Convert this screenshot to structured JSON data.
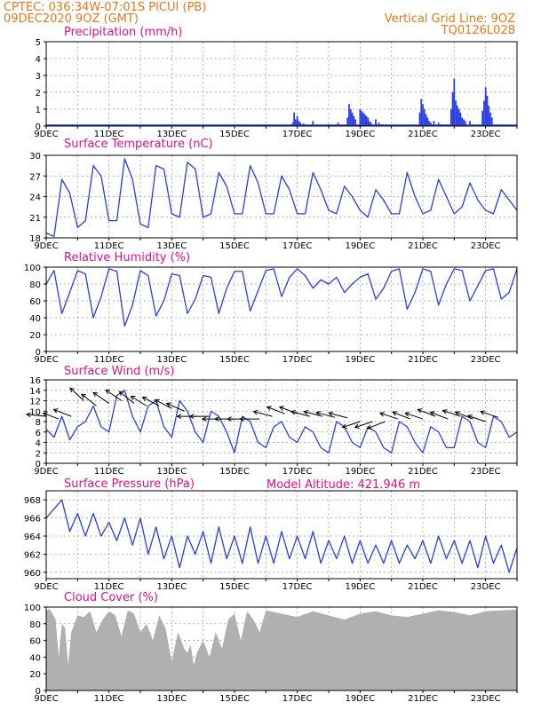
{
  "header": {
    "left_line1": "CPTEC:   036:34W-07:01S   PICUI (PB)",
    "left_line2": "09DEC2020 9OZ (GMT)",
    "right_line1": "Vertical Grid Line: 9OZ",
    "right_line2": "TQ0126L028",
    "model_altitude": "Model Altitude: 421.946  m"
  },
  "colors": {
    "header": "#e07a1f",
    "panel_title": "#e0118a",
    "line": "#2a3fe0",
    "bar": "#2a3fe0",
    "cloud": "#b0b0b0",
    "grid": "#9a9a9a"
  },
  "x_ticks": [
    "9DEC",
    "11DEC",
    "13DEC",
    "15DEC",
    "17DEC",
    "19DEC",
    "21DEC",
    "23DEC"
  ],
  "chart_data": [
    {
      "type": "bar",
      "title": "Precipitation (mm/h)",
      "x_start": "2020-12-09",
      "x_days": 15,
      "ylim": [
        0,
        5
      ],
      "yticks": [
        "0",
        "1",
        "2",
        "3",
        "4",
        "5"
      ],
      "x": [
        7.85,
        7.9,
        7.95,
        8.0,
        8.05,
        8.1,
        8.2,
        8.5,
        9.0,
        9.3,
        9.6,
        9.65,
        9.7,
        9.75,
        9.8,
        9.85,
        10.0,
        10.05,
        10.1,
        10.15,
        10.2,
        10.25,
        10.3,
        10.35,
        10.5,
        10.6,
        10.7,
        11.9,
        11.95,
        12.0,
        12.05,
        12.1,
        12.15,
        12.2,
        12.25,
        12.35,
        12.5,
        12.6,
        12.9,
        12.95,
        13.0,
        13.05,
        13.1,
        13.15,
        13.2,
        13.25,
        13.3,
        13.35,
        13.5,
        13.9,
        13.95,
        14.0,
        14.05,
        14.1,
        14.15,
        14.2
      ],
      "values": [
        0.2,
        0.8,
        0.4,
        0.6,
        0.3,
        0.2,
        0.15,
        0.3,
        0.1,
        0.2,
        0.5,
        1.3,
        1.0,
        0.8,
        0.6,
        0.4,
        1.0,
        0.9,
        0.8,
        0.7,
        0.6,
        0.5,
        0.3,
        0.2,
        0.4,
        0.2,
        0.1,
        0.8,
        1.6,
        1.3,
        1.0,
        0.7,
        0.5,
        0.3,
        0.2,
        0.3,
        0.2,
        0.1,
        1.0,
        2.0,
        2.8,
        1.5,
        1.2,
        1.0,
        0.8,
        0.5,
        0.4,
        0.3,
        0.3,
        0.9,
        1.5,
        2.3,
        1.8,
        1.2,
        0.8,
        0.5
      ]
    },
    {
      "type": "line",
      "title": "Surface Temperature (nC)",
      "ylim": [
        18,
        30
      ],
      "yticks": [
        "18",
        "21",
        "24",
        "27",
        "30"
      ],
      "x": [
        0,
        0.25,
        0.5,
        0.75,
        1,
        1.25,
        1.5,
        1.75,
        2,
        2.25,
        2.5,
        2.75,
        3,
        3.25,
        3.5,
        3.75,
        4,
        4.25,
        4.5,
        4.75,
        5,
        5.25,
        5.5,
        5.75,
        6,
        6.25,
        6.5,
        6.75,
        7,
        7.25,
        7.5,
        7.75,
        8,
        8.25,
        8.5,
        8.75,
        9,
        9.25,
        9.5,
        9.75,
        10,
        10.25,
        10.5,
        10.75,
        11,
        11.25,
        11.5,
        11.75,
        12,
        12.25,
        12.5,
        12.75,
        13,
        13.25,
        13.5,
        13.75,
        14,
        14.25,
        14.5,
        14.75,
        15
      ],
      "values": [
        18.7,
        18.2,
        26.5,
        24.5,
        19.5,
        20.5,
        28.5,
        27,
        20.5,
        20.5,
        29.5,
        26.5,
        20,
        19.5,
        28.5,
        28,
        21.5,
        21,
        29,
        28,
        21,
        21.5,
        27.5,
        25.5,
        21.5,
        21.5,
        28.5,
        26,
        21.5,
        21.5,
        27,
        25,
        21.5,
        21.5,
        27.5,
        25,
        22,
        21.5,
        25.5,
        24,
        22,
        21,
        25,
        23.5,
        21.5,
        21.5,
        27.5,
        24,
        21.5,
        22,
        26.5,
        24,
        21.5,
        22.5,
        26,
        23.5,
        22,
        21.5,
        25,
        23.5,
        22
      ]
    },
    {
      "type": "line",
      "title": "Relative Humidity (%)",
      "ylim": [
        0,
        100
      ],
      "yticks": [
        "0",
        "20",
        "40",
        "60",
        "80",
        "100"
      ],
      "x": [
        0,
        0.25,
        0.5,
        0.75,
        1,
        1.25,
        1.5,
        1.75,
        2,
        2.25,
        2.5,
        2.75,
        3,
        3.25,
        3.5,
        3.75,
        4,
        4.25,
        4.5,
        4.75,
        5,
        5.25,
        5.5,
        5.75,
        6,
        6.25,
        6.5,
        6.75,
        7,
        7.25,
        7.5,
        7.75,
        8,
        8.25,
        8.5,
        8.75,
        9,
        9.25,
        9.5,
        9.75,
        10,
        10.25,
        10.5,
        10.75,
        11,
        11.25,
        11.5,
        11.75,
        12,
        12.25,
        12.5,
        12.75,
        13,
        13.25,
        13.5,
        13.75,
        14,
        14.25,
        14.5,
        14.75,
        15
      ],
      "values": [
        80,
        96,
        45,
        70,
        96,
        92,
        40,
        65,
        98,
        95,
        30,
        55,
        96,
        90,
        42,
        60,
        92,
        90,
        45,
        62,
        90,
        88,
        45,
        75,
        95,
        95,
        48,
        72,
        96,
        98,
        65,
        88,
        98,
        90,
        75,
        85,
        80,
        88,
        70,
        80,
        88,
        92,
        62,
        75,
        95,
        98,
        50,
        70,
        98,
        95,
        55,
        80,
        98,
        96,
        60,
        78,
        96,
        98,
        62,
        70,
        98
      ]
    },
    {
      "type": "line",
      "title": "Surface Wind (m/s)",
      "ylim": [
        0,
        16
      ],
      "yticks": [
        "0",
        "2",
        "4",
        "6",
        "8",
        "10",
        "12",
        "14",
        "16"
      ],
      "x": [
        0,
        0.25,
        0.5,
        0.75,
        1,
        1.25,
        1.5,
        1.75,
        2,
        2.25,
        2.5,
        2.75,
        3,
        3.25,
        3.5,
        3.75,
        4,
        4.25,
        4.5,
        4.75,
        5,
        5.25,
        5.5,
        5.75,
        6,
        6.25,
        6.5,
        6.75,
        7,
        7.25,
        7.5,
        7.75,
        8,
        8.25,
        8.5,
        8.75,
        9,
        9.25,
        9.5,
        9.75,
        10,
        10.25,
        10.5,
        10.75,
        11,
        11.25,
        11.5,
        11.75,
        12,
        12.25,
        12.5,
        12.75,
        13,
        13.25,
        13.5,
        13.75,
        14,
        14.25,
        14.5,
        14.75,
        15
      ],
      "values": [
        6.5,
        5,
        9,
        4.5,
        7,
        8,
        11,
        7,
        6,
        13,
        14,
        9,
        6,
        11,
        12,
        7,
        5,
        12,
        10,
        6,
        4,
        10,
        9,
        6,
        2,
        9,
        8,
        4,
        3,
        7,
        8,
        5,
        4,
        7,
        6,
        3,
        2,
        8,
        7,
        4,
        3,
        7,
        6,
        3,
        2,
        8,
        7,
        4,
        2,
        7,
        6,
        3,
        3,
        9,
        8,
        4,
        3,
        9,
        8,
        5,
        6
      ]
    },
    {
      "type": "line",
      "title": "Surface Pressure (hPa)",
      "ylim": [
        959.3,
        969.0
      ],
      "yticks": [
        "960",
        "962",
        "964",
        "966",
        "968"
      ],
      "x": [
        0,
        0.25,
        0.5,
        0.75,
        1,
        1.25,
        1.5,
        1.75,
        2,
        2.25,
        2.5,
        2.75,
        3,
        3.25,
        3.5,
        3.75,
        4,
        4.25,
        4.5,
        4.75,
        5,
        5.25,
        5.5,
        5.75,
        6,
        6.25,
        6.5,
        6.75,
        7,
        7.25,
        7.5,
        7.75,
        8,
        8.25,
        8.5,
        8.75,
        9,
        9.25,
        9.5,
        9.75,
        10,
        10.25,
        10.5,
        10.75,
        11,
        11.25,
        11.5,
        11.75,
        12,
        12.25,
        12.5,
        12.75,
        13,
        13.25,
        13.5,
        13.75,
        14,
        14.25,
        14.5,
        14.75,
        15
      ],
      "values": [
        966,
        967,
        968,
        964.5,
        966.5,
        964,
        966.5,
        964,
        965.5,
        963.5,
        966,
        963,
        966,
        962,
        965,
        961.5,
        964,
        960.5,
        964,
        962,
        964.5,
        961,
        965,
        961.5,
        964,
        961,
        965,
        961,
        964,
        961,
        964.5,
        961.5,
        964,
        961.5,
        964.5,
        961,
        963.5,
        961.5,
        964,
        961,
        963.5,
        961,
        963,
        961,
        963.5,
        961,
        963,
        961.5,
        963.5,
        961,
        964,
        961.5,
        963.5,
        961,
        963.5,
        960.5,
        964,
        961,
        963,
        960,
        962.7
      ]
    },
    {
      "type": "area",
      "title": "Cloud Cover (%)",
      "ylim": [
        0,
        100
      ],
      "yticks": [
        "0",
        "20",
        "40",
        "60",
        "80",
        "100"
      ],
      "x": [
        0,
        0.1,
        0.2,
        0.3,
        0.4,
        0.5,
        0.6,
        0.7,
        0.8,
        1,
        1.2,
        1.4,
        1.6,
        1.8,
        2,
        2.2,
        2.4,
        2.6,
        2.8,
        3,
        3.2,
        3.4,
        3.6,
        3.8,
        4,
        4.2,
        4.4,
        4.5,
        4.6,
        4.7,
        4.8,
        5,
        5.2,
        5.4,
        5.6,
        5.8,
        6,
        6.2,
        6.4,
        6.6,
        6.8,
        7,
        7.5,
        8,
        8.5,
        9,
        9.5,
        10,
        10.5,
        11,
        11.5,
        12,
        12.5,
        13,
        13.5,
        14,
        14.5,
        15
      ],
      "values": [
        95,
        98,
        92,
        85,
        40,
        80,
        75,
        30,
        70,
        90,
        88,
        95,
        70,
        85,
        95,
        90,
        65,
        96,
        92,
        70,
        80,
        60,
        90,
        75,
        35,
        70,
        50,
        45,
        55,
        30,
        45,
        60,
        40,
        70,
        50,
        85,
        92,
        60,
        95,
        85,
        70,
        96,
        92,
        88,
        95,
        90,
        85,
        92,
        95,
        90,
        88,
        92,
        96,
        94,
        90,
        95,
        96,
        97
      ]
    }
  ],
  "wind_barbs": {
    "note": "direction arrows, vector components in m/s",
    "x": [
      0,
      0.4,
      0.8,
      1.2,
      1.6,
      2.0,
      2.4,
      2.8,
      3.2,
      3.6,
      4.0,
      4.4,
      4.8,
      5.2,
      5.6,
      6.0,
      6.4,
      6.8,
      7.2,
      7.6,
      8.0,
      8.4,
      8.8,
      9.2,
      9.6,
      10.0,
      10.4,
      10.8,
      11.2,
      11.6,
      12.0,
      12.4,
      12.8,
      13.2,
      13.6,
      14.0,
      14.4
    ],
    "speed": [
      9,
      8.5,
      9,
      12,
      11,
      11.5,
      12,
      11.5,
      11,
      11,
      10.5,
      10,
      9,
      9,
      8.5,
      8.5,
      8.5,
      8.5,
      9,
      9.5,
      9.5,
      9,
      9,
      8.8,
      8.7,
      8,
      8,
      8,
      8.5,
      8.5,
      8.5,
      9,
      8.5,
      9,
      8.5,
      8,
      8.8
    ],
    "u": [
      -1,
      -0.8,
      -0.9,
      -0.7,
      -0.75,
      -0.8,
      -0.8,
      -0.75,
      -0.8,
      -0.85,
      -0.85,
      -0.9,
      -1,
      -1,
      -1,
      -1,
      -1,
      -1,
      -0.95,
      -0.9,
      -0.9,
      -0.95,
      -0.95,
      -0.95,
      -0.95,
      -0.9,
      -0.9,
      -0.9,
      -0.9,
      -0.9,
      -0.9,
      -0.9,
      -0.9,
      -0.9,
      -0.9,
      -0.9,
      -0.9
    ],
    "v": [
      0.1,
      0.3,
      0.35,
      0.65,
      0.6,
      0.55,
      0.55,
      0.6,
      0.5,
      0.45,
      0.45,
      0.4,
      0,
      0,
      0,
      0,
      0,
      0,
      0.25,
      0.35,
      0.35,
      0.25,
      0.25,
      0.25,
      0.25,
      -0.3,
      -0.3,
      -0.35,
      0.3,
      0.35,
      0.3,
      0.35,
      0.35,
      0.3,
      0.35,
      0.3,
      0.3
    ]
  }
}
